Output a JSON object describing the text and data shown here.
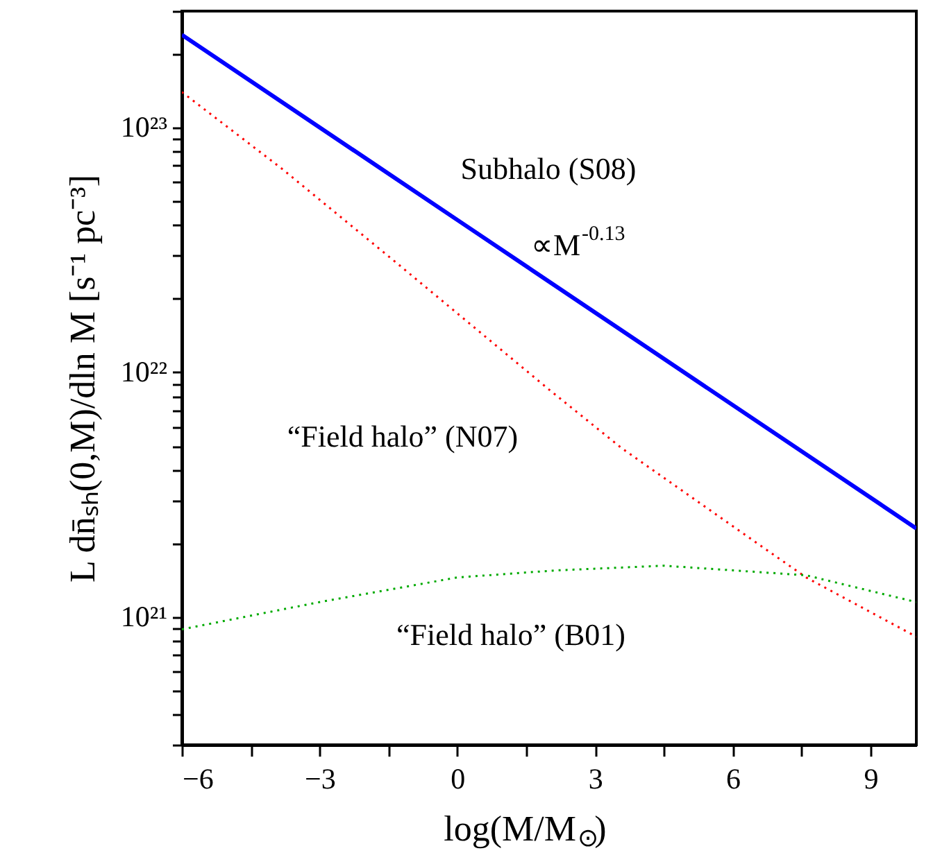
{
  "chart_data": {
    "type": "line",
    "xlabel": "log(M/M$_{⊙}$)",
    "ylabel": "L dn̄ₛₕ(0,M)/dln M [s⁻¹ pc⁻³]",
    "log": "y",
    "xlim": [
      -6,
      10
    ],
    "ylim": [
      3e+20,
      3e+23
    ],
    "xticks": [
      -6,
      {
        "value": -4.5,
        "label": null
      },
      -3,
      {
        "value": -1.5,
        "label": null
      },
      0,
      {
        "value": 1.5,
        "label": null
      },
      3,
      {
        "value": 4.5,
        "label": null
      },
      6,
      {
        "value": 7.5,
        "label": null
      },
      9
    ],
    "yticks": [
      {
        "value": 3e+20,
        "label": null
      },
      {
        "value": 4e+20,
        "label": null
      },
      {
        "value": 5e+20,
        "label": null
      },
      {
        "value": 6e+20,
        "label": null
      },
      {
        "value": 7e+20,
        "label": null
      },
      {
        "value": 8e+20,
        "label": null
      },
      {
        "value": 9e+20,
        "label": null
      },
      {
        "value": 1e+21,
        "label": "10²¹"
      },
      {
        "value": 2e+21,
        "label": null
      },
      {
        "value": 3e+21,
        "label": null
      },
      {
        "value": 4e+21,
        "label": null
      },
      {
        "value": 5e+21,
        "label": null
      },
      {
        "value": 6e+21,
        "label": null
      },
      {
        "value": 7e+21,
        "label": null
      },
      {
        "value": 8e+21,
        "label": null
      },
      {
        "value": 9e+21,
        "label": null
      },
      {
        "value": 1e+22,
        "label": "10²²"
      },
      {
        "value": 2e+22,
        "label": null
      },
      {
        "value": 3e+22,
        "label": null
      },
      {
        "value": 4e+22,
        "label": null
      },
      {
        "value": 5e+22,
        "label": null
      },
      {
        "value": 6e+22,
        "label": null
      },
      {
        "value": 7e+22,
        "label": null
      },
      {
        "value": 8e+22,
        "label": null
      },
      {
        "value": 9e+22,
        "label": null
      },
      {
        "value": 1e+23,
        "label": "10²³"
      },
      {
        "value": 2e+23,
        "label": null
      },
      {
        "value": 3e+23,
        "label": null
      }
    ],
    "series": [
      {
        "color": "#0000ff",
        "line_style": "solid",
        "x": [
          -6,
          0,
          10
        ],
        "values": [
          2.4e+23,
          4.2e+22,
          2.3e+21
        ]
      },
      {
        "color": "#ff0000",
        "line_style": "dotted",
        "x": [
          -6,
          -3.82,
          -1.27,
          2,
          3.58,
          6,
          7.6,
          10
        ],
        "values": [
          1.4e+23,
          6.8e+22,
          2.75e+22,
          8.5e+21,
          4.9e+21,
          2.35e+21,
          1.45e+21,
          8.3e+20
        ]
      },
      {
        "color": "#00aa00",
        "line_style": "dotted",
        "x": [
          -6,
          -3,
          0,
          2.15,
          4.5,
          7.6,
          10
        ],
        "values": [
          8.9e+20,
          1.15e+21,
          1.45e+21,
          1.55e+21,
          1.62e+21,
          1.48e+21,
          1.15e+21
        ]
      }
    ],
    "annotations": [
      "Subhalo (S08)",
      "∝M$^{-0.13}$",
      "“Field halo” (N07)",
      "“Field halo” (B01)"
    ]
  }
}
